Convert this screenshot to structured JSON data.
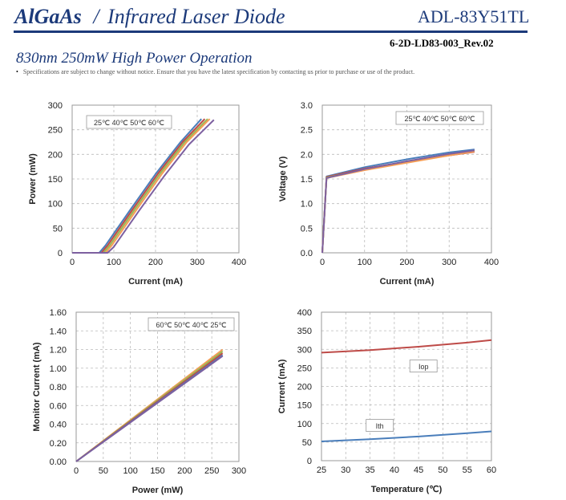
{
  "header": {
    "brand": "AlGaAs",
    "slash": "/",
    "subtitle": "Infrared Laser Diode",
    "model": "ADL-83Y51TL",
    "doc_number": "6-2D-LD83-003_Rev.02",
    "headline": "830nm 250mW High Power Operation",
    "notice_bullet": "•",
    "notice": "Specifications are subject to change without notice. Ensure that you have the latest specification by contacting us prior to purchase or use of the product."
  },
  "colors": {
    "blue": "#4a7ebb",
    "red": "#be4b48",
    "green": "#98b954",
    "orange": "#f59d56",
    "purple": "#7d60a0",
    "grid": "#bbbbbb"
  },
  "chart_data": [
    {
      "id": "pi",
      "type": "line",
      "xlabel": "Current (mA)",
      "ylabel": "Power (mW)",
      "xlim": [
        0,
        400
      ],
      "ylim": [
        0,
        300
      ],
      "xticks": [
        0,
        100,
        200,
        300,
        400
      ],
      "yticks": [
        0,
        50,
        100,
        150,
        200,
        250,
        300
      ],
      "legend_text": "25℃ 40℃ 50℃ 60℃",
      "series": [
        {
          "name": "25℃",
          "color": "blue",
          "points": [
            [
              0,
              0
            ],
            [
              65,
              0
            ],
            [
              80,
              15
            ],
            [
              140,
              88
            ],
            [
              200,
              160
            ],
            [
              260,
              225
            ],
            [
              310,
              272
            ]
          ]
        },
        {
          "name": "40℃",
          "color": "red",
          "points": [
            [
              0,
              0
            ],
            [
              70,
              0
            ],
            [
              85,
              15
            ],
            [
              145,
              88
            ],
            [
              205,
              160
            ],
            [
              265,
              225
            ],
            [
              318,
              272
            ]
          ]
        },
        {
          "name": "50℃",
          "color": "green",
          "points": [
            [
              0,
              0
            ],
            [
              75,
              0
            ],
            [
              90,
              15
            ],
            [
              150,
              88
            ],
            [
              210,
              160
            ],
            [
              270,
              225
            ],
            [
              325,
              272
            ]
          ]
        },
        {
          "name": "60℃",
          "color": "orange",
          "points": [
            [
              0,
              0
            ],
            [
              80,
              0
            ],
            [
              95,
              15
            ],
            [
              155,
              88
            ],
            [
              215,
              160
            ],
            [
              275,
              225
            ],
            [
              330,
              272
            ]
          ]
        },
        {
          "name": "",
          "color": "purple",
          "points": [
            [
              0,
              0
            ],
            [
              85,
              0
            ],
            [
              100,
              12
            ],
            [
              160,
              85
            ],
            [
              220,
              155
            ],
            [
              280,
              220
            ],
            [
              340,
              270
            ]
          ]
        }
      ]
    },
    {
      "id": "vi",
      "type": "line",
      "xlabel": "Current (mA)",
      "ylabel": "Voltage (V)",
      "xlim": [
        0,
        400
      ],
      "ylim": [
        0,
        3.0
      ],
      "xticks": [
        0,
        100,
        200,
        300,
        400
      ],
      "yticks": [
        0.0,
        0.5,
        1.0,
        1.5,
        2.0,
        2.5,
        3.0
      ],
      "xtick_labels": [
        "0",
        "100",
        "200",
        "300",
        "400"
      ],
      "ytick_labels": [
        "0.0",
        "0.5",
        "1.0",
        "1.5",
        "2.0",
        "2.5",
        "3.0"
      ],
      "legend_text": "25℃ 40℃ 50℃ 60℃",
      "series": [
        {
          "name": "25℃",
          "color": "blue",
          "points": [
            [
              0,
              0
            ],
            [
              10,
              1.55
            ],
            [
              100,
              1.74
            ],
            [
              200,
              1.9
            ],
            [
              300,
              2.04
            ],
            [
              360,
              2.1
            ]
          ]
        },
        {
          "name": "40℃",
          "color": "red",
          "points": [
            [
              0,
              0
            ],
            [
              10,
              1.54
            ],
            [
              100,
              1.71
            ],
            [
              200,
              1.85
            ],
            [
              300,
              1.98
            ],
            [
              360,
              2.05
            ]
          ]
        },
        {
          "name": "50℃",
          "color": "green",
          "points": [
            [
              0,
              0
            ],
            [
              10,
              1.53
            ],
            [
              100,
              1.69
            ],
            [
              200,
              1.84
            ],
            [
              300,
              1.99
            ],
            [
              360,
              2.07
            ]
          ]
        },
        {
          "name": "60℃",
          "color": "orange",
          "points": [
            [
              0,
              0
            ],
            [
              10,
              1.52
            ],
            [
              100,
              1.68
            ],
            [
              200,
              1.83
            ],
            [
              300,
              1.98
            ],
            [
              360,
              2.06
            ]
          ]
        },
        {
          "name": "",
          "color": "purple",
          "points": [
            [
              0,
              0
            ],
            [
              10,
              1.52
            ],
            [
              100,
              1.7
            ],
            [
              200,
              1.86
            ],
            [
              300,
              2.01
            ],
            [
              360,
              2.08
            ]
          ]
        }
      ]
    },
    {
      "id": "monitor",
      "type": "line",
      "xlabel": "Power (mW)",
      "ylabel": "Monitor Current (mA)",
      "xlim": [
        0,
        300
      ],
      "ylim": [
        0,
        1.6
      ],
      "xticks": [
        0,
        50,
        100,
        150,
        200,
        250,
        300
      ],
      "yticks": [
        0.0,
        0.2,
        0.4,
        0.6,
        0.8,
        1.0,
        1.2,
        1.4,
        1.6
      ],
      "xtick_labels": [
        "0",
        "50",
        "100",
        "150",
        "200",
        "250",
        "300"
      ],
      "ytick_labels": [
        "0.00",
        "0.20",
        "0.40",
        "0.60",
        "0.80",
        "1.00",
        "1.20",
        "1.40",
        "1.60"
      ],
      "legend_text": "60℃ 50℃ 40℃ 25℃",
      "series": [
        {
          "name": "60℃",
          "color": "orange",
          "points": [
            [
              0,
              0
            ],
            [
              270,
              1.2
            ]
          ]
        },
        {
          "name": "50℃",
          "color": "green",
          "points": [
            [
              0,
              0
            ],
            [
              270,
              1.18
            ]
          ]
        },
        {
          "name": "40℃",
          "color": "red",
          "points": [
            [
              0,
              0
            ],
            [
              270,
              1.16
            ]
          ]
        },
        {
          "name": "25℃",
          "color": "blue",
          "points": [
            [
              0,
              0
            ],
            [
              270,
              1.14
            ]
          ]
        },
        {
          "name": "",
          "color": "purple",
          "points": [
            [
              0,
              0
            ],
            [
              270,
              1.13
            ]
          ]
        }
      ]
    },
    {
      "id": "temp",
      "type": "line",
      "xlabel": "Temperature (℃)",
      "ylabel": "Current (mA)",
      "xlim": [
        25,
        60
      ],
      "ylim": [
        0,
        400
      ],
      "xticks": [
        25,
        30,
        35,
        40,
        45,
        50,
        55,
        60
      ],
      "yticks": [
        0,
        50,
        100,
        150,
        200,
        250,
        300,
        350,
        400
      ],
      "series": [
        {
          "name": "Iop",
          "color": "red",
          "points": [
            [
              25,
              291
            ],
            [
              35,
              298
            ],
            [
              45,
              307
            ],
            [
              55,
              318
            ],
            [
              60,
              325
            ]
          ]
        },
        {
          "name": "Ith",
          "color": "blue",
          "points": [
            [
              25,
              52
            ],
            [
              35,
              58
            ],
            [
              45,
              65
            ],
            [
              55,
              74
            ],
            [
              60,
              79
            ]
          ]
        }
      ],
      "labels": [
        {
          "text": "Iop",
          "x": 46,
          "y": 255
        },
        {
          "text": "Ith",
          "x": 37,
          "y": 95
        }
      ]
    }
  ]
}
